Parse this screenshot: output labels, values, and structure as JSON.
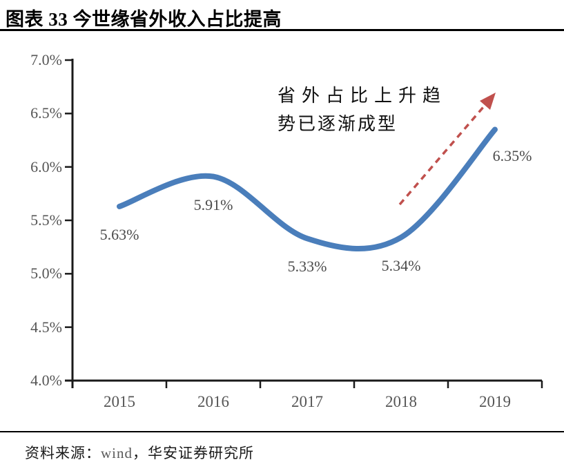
{
  "header": {
    "title": "图表 33 今世缘省外收入占比提高"
  },
  "annotation": {
    "line1": "省外占比上升趋",
    "line2": "势已逐渐成型",
    "full_text": "省外占比上升趋势已逐渐成型"
  },
  "footer": {
    "source_prefix": "资料来源：",
    "source_vendor": "wind",
    "source_suffix": "，华安证券研究所"
  },
  "colors": {
    "series_line": "#4a7ebb",
    "trend_arrow": "#c0504d",
    "axis": "#1a1a1a",
    "tick_label": "#555555",
    "data_label": "#4a4a4a",
    "vendor_text": "#595959"
  },
  "chart_data": {
    "type": "line",
    "smooth": true,
    "title": "图表 33 今世缘省外收入占比提高",
    "categories": [
      "2015",
      "2016",
      "2017",
      "2018",
      "2019"
    ],
    "values": [
      5.63,
      5.91,
      5.33,
      5.34,
      6.35
    ],
    "data_labels": [
      "5.63%",
      "5.91%",
      "5.33%",
      "5.34%",
      "6.35%"
    ],
    "xlabel": "",
    "ylabel": "",
    "ylim": [
      4.0,
      7.0
    ],
    "y_ticks": [
      {
        "value": 7.0,
        "label": "7.0%"
      },
      {
        "value": 6.5,
        "label": "6.5%"
      },
      {
        "value": 6.0,
        "label": "6.0%"
      },
      {
        "value": 5.5,
        "label": "5.5%"
      },
      {
        "value": 5.0,
        "label": "5.0%"
      },
      {
        "value": 4.5,
        "label": "4.5%"
      },
      {
        "value": 4.0,
        "label": "4.0%"
      }
    ],
    "grid": false,
    "legend": "none",
    "annotation_text": "省外占比上升趋势已逐渐成型"
  }
}
